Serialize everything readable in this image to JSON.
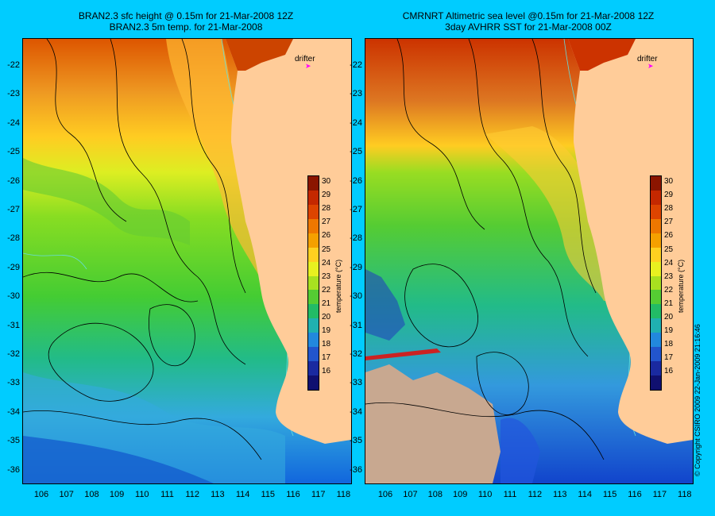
{
  "left_panel": {
    "title_line1": "BRAN2.3 sfc height @ 0.15m for 21-Mar-2008 12Z",
    "title_line2": "BRAN2.3 5m temp. for 21-Mar-2008",
    "drifter_label": "drifter"
  },
  "right_panel": {
    "title_line1": "CMRNRT Altimetric sea level  @0.15m  for 21-Mar-2008 12Z",
    "title_line2": "3day AVHRR SST for 21-Mar-2008 00Z",
    "drifter_label": "drifter"
  },
  "axes": {
    "lat_ticks": [
      "-22",
      "-23",
      "-24",
      "-25",
      "-26",
      "-27",
      "-28",
      "-29",
      "-30",
      "-31",
      "-32",
      "-33",
      "-34",
      "-35",
      "-36"
    ],
    "lon_ticks": [
      "106",
      "107",
      "108",
      "109",
      "110",
      "111",
      "112",
      "113",
      "114",
      "115",
      "116",
      "117",
      "118"
    ]
  },
  "colorbar": {
    "title": "temperature (°C)",
    "ticks": [
      "30",
      "29",
      "28",
      "27",
      "26",
      "25",
      "24",
      "23",
      "22",
      "21",
      "20",
      "19",
      "18",
      "17",
      "16"
    ]
  },
  "copyright": "© Copyright CSIRO 2009   22-Jan-2009 21:16:46",
  "colors": {
    "background": "#00ccff",
    "land": "#ffcc99",
    "cloud": "#c8a890",
    "warm": "#cc4400",
    "cool": "#1155dd"
  }
}
